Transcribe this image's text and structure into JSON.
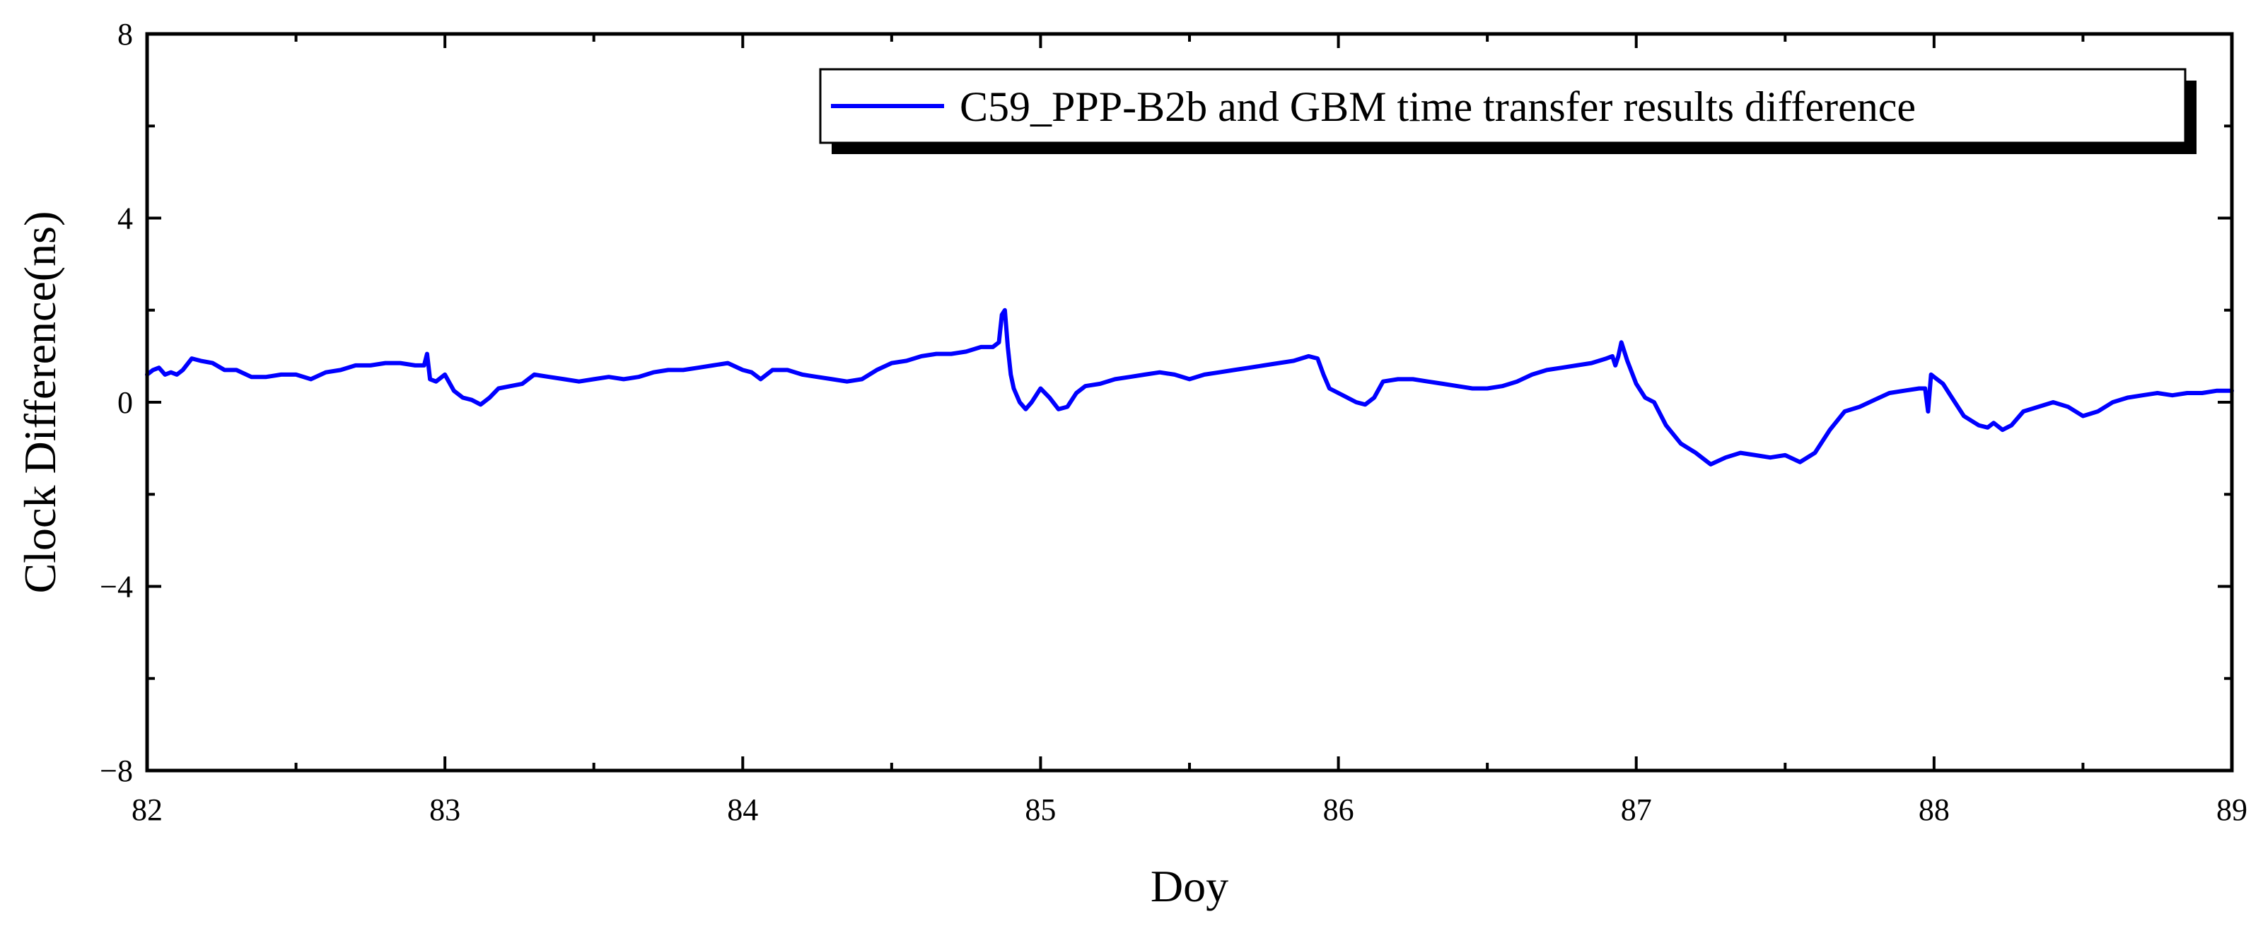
{
  "chart_data": {
    "type": "line",
    "xlabel": "Doy",
    "ylabel": "Clock Difference(ns)",
    "xlim": [
      82,
      89
    ],
    "ylim": [
      -8,
      8
    ],
    "xticks": [
      82,
      83,
      84,
      85,
      86,
      87,
      88,
      89
    ],
    "xtick_labels": [
      "82",
      "83",
      "84",
      "85",
      "86",
      "87",
      "88",
      "89"
    ],
    "yticks": [
      -8,
      -4,
      0,
      4,
      8
    ],
    "ytick_labels": [
      "−8",
      "−4",
      "0",
      "4",
      "8"
    ],
    "grid": false,
    "legend_position": "top-right",
    "series": [
      {
        "name": "C59_PPP-B2b and GBM time transfer results difference",
        "color": "#0000ff",
        "x": [
          82.0,
          82.02,
          82.04,
          82.06,
          82.08,
          82.1,
          82.12,
          82.15,
          82.18,
          82.22,
          82.26,
          82.3,
          82.35,
          82.4,
          82.45,
          82.5,
          82.55,
          82.6,
          82.65,
          82.7,
          82.75,
          82.8,
          82.85,
          82.9,
          82.93,
          82.94,
          82.95,
          82.97,
          83.0,
          83.03,
          83.06,
          83.09,
          83.12,
          83.15,
          83.18,
          83.22,
          83.26,
          83.3,
          83.35,
          83.4,
          83.45,
          83.5,
          83.55,
          83.6,
          83.65,
          83.7,
          83.75,
          83.8,
          83.85,
          83.9,
          83.95,
          84.0,
          84.03,
          84.06,
          84.1,
          84.15,
          84.2,
          84.25,
          84.3,
          84.35,
          84.4,
          84.45,
          84.5,
          84.55,
          84.6,
          84.65,
          84.7,
          84.75,
          84.8,
          84.84,
          84.86,
          84.87,
          84.88,
          84.89,
          84.9,
          84.91,
          84.93,
          84.95,
          84.97,
          85.0,
          85.03,
          85.06,
          85.09,
          85.12,
          85.15,
          85.2,
          85.25,
          85.3,
          85.35,
          85.4,
          85.45,
          85.5,
          85.55,
          85.6,
          85.65,
          85.7,
          85.75,
          85.8,
          85.85,
          85.9,
          85.93,
          85.95,
          85.97,
          86.0,
          86.03,
          86.06,
          86.09,
          86.12,
          86.15,
          86.2,
          86.25,
          86.3,
          86.35,
          86.4,
          86.45,
          86.5,
          86.55,
          86.6,
          86.65,
          86.7,
          86.75,
          86.8,
          86.85,
          86.9,
          86.92,
          86.93,
          86.94,
          86.95,
          86.97,
          87.0,
          87.03,
          87.06,
          87.1,
          87.15,
          87.2,
          87.25,
          87.3,
          87.35,
          87.4,
          87.45,
          87.5,
          87.55,
          87.6,
          87.65,
          87.7,
          87.75,
          87.8,
          87.85,
          87.9,
          87.95,
          87.97,
          87.98,
          87.99,
          88.0,
          88.03,
          88.06,
          88.1,
          88.15,
          88.18,
          88.2,
          88.23,
          88.26,
          88.3,
          88.35,
          88.4,
          88.45,
          88.5,
          88.55,
          88.6,
          88.65,
          88.7,
          88.75,
          88.8,
          88.85,
          88.9,
          88.95,
          89.0
        ],
        "y": [
          0.6,
          0.7,
          0.75,
          0.6,
          0.65,
          0.6,
          0.7,
          0.95,
          0.9,
          0.85,
          0.7,
          0.7,
          0.55,
          0.55,
          0.6,
          0.6,
          0.5,
          0.65,
          0.7,
          0.8,
          0.8,
          0.85,
          0.85,
          0.8,
          0.8,
          1.05,
          0.5,
          0.45,
          0.6,
          0.25,
          0.1,
          0.05,
          -0.05,
          0.1,
          0.3,
          0.35,
          0.4,
          0.6,
          0.55,
          0.5,
          0.45,
          0.5,
          0.55,
          0.5,
          0.55,
          0.65,
          0.7,
          0.7,
          0.75,
          0.8,
          0.85,
          0.7,
          0.65,
          0.5,
          0.7,
          0.7,
          0.6,
          0.55,
          0.5,
          0.45,
          0.5,
          0.7,
          0.85,
          0.9,
          1.0,
          1.05,
          1.05,
          1.1,
          1.2,
          1.2,
          1.3,
          1.9,
          2.0,
          1.2,
          0.6,
          0.3,
          0.0,
          -0.15,
          0.0,
          0.3,
          0.1,
          -0.15,
          -0.1,
          0.2,
          0.35,
          0.4,
          0.5,
          0.55,
          0.6,
          0.65,
          0.6,
          0.5,
          0.6,
          0.65,
          0.7,
          0.75,
          0.8,
          0.85,
          0.9,
          1.0,
          0.95,
          0.6,
          0.3,
          0.2,
          0.1,
          0.0,
          -0.05,
          0.1,
          0.45,
          0.5,
          0.5,
          0.45,
          0.4,
          0.35,
          0.3,
          0.3,
          0.35,
          0.45,
          0.6,
          0.7,
          0.75,
          0.8,
          0.85,
          0.95,
          1.0,
          0.8,
          1.0,
          1.3,
          0.9,
          0.4,
          0.1,
          0.0,
          -0.5,
          -0.9,
          -1.1,
          -1.35,
          -1.2,
          -1.1,
          -1.15,
          -1.2,
          -1.15,
          -1.3,
          -1.1,
          -0.6,
          -0.2,
          -0.1,
          0.05,
          0.2,
          0.25,
          0.3,
          0.3,
          -0.2,
          0.6,
          0.55,
          0.4,
          0.1,
          -0.3,
          -0.5,
          -0.55,
          -0.45,
          -0.6,
          -0.5,
          -0.2,
          -0.1,
          0.0,
          -0.1,
          -0.3,
          -0.2,
          0.0,
          0.1,
          0.15,
          0.2,
          0.15,
          0.2,
          0.2,
          0.25,
          0.25
        ]
      }
    ]
  }
}
